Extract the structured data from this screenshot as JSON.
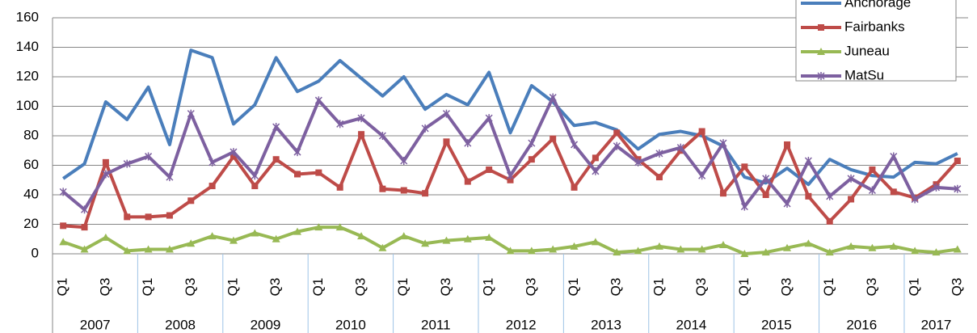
{
  "chart_data": {
    "type": "line",
    "categories": [
      "Q1",
      null,
      "Q3",
      null,
      "Q1",
      null,
      "Q3",
      null,
      "Q1",
      null,
      "Q3",
      null,
      "Q1",
      null,
      "Q3",
      null,
      "Q1",
      null,
      "Q3",
      null,
      "Q1",
      null,
      "Q3",
      null,
      "Q1",
      null,
      "Q3",
      null,
      "Q1",
      null,
      "Q3",
      null,
      "Q1",
      null,
      "Q3",
      null,
      "Q1",
      null,
      "Q3",
      null,
      "Q1",
      null,
      "Q3"
    ],
    "year_groups": [
      "2007",
      "2008",
      "2009",
      "2010",
      "2011",
      "2012",
      "2013",
      "2014",
      "2015",
      "2016",
      "2017"
    ],
    "series": [
      {
        "name": "Anchorage",
        "color": "#4a7ebb",
        "marker": "none",
        "values": [
          51,
          61,
          103,
          91,
          113,
          74,
          138,
          133,
          88,
          101,
          133,
          110,
          117,
          131,
          119,
          107,
          120,
          98,
          108,
          101,
          123,
          82,
          114,
          103,
          87,
          89,
          84,
          71,
          81,
          83,
          80,
          73,
          52,
          48,
          58,
          47,
          64,
          57,
          53,
          52,
          62,
          61,
          68
        ]
      },
      {
        "name": "Fairbanks",
        "color": "#be4b48",
        "marker": "square",
        "values": [
          19,
          18,
          62,
          25,
          25,
          26,
          36,
          46,
          66,
          46,
          64,
          54,
          55,
          45,
          81,
          44,
          43,
          41,
          76,
          49,
          57,
          50,
          64,
          78,
          45,
          65,
          82,
          64,
          52,
          70,
          83,
          41,
          59,
          40,
          74,
          39,
          22,
          37,
          57,
          42,
          38,
          47,
          63
        ]
      },
      {
        "name": "Juneau",
        "color": "#98b954",
        "marker": "triangle",
        "values": [
          8,
          3,
          11,
          2,
          3,
          3,
          7,
          12,
          9,
          14,
          10,
          15,
          18,
          18,
          12,
          4,
          12,
          7,
          9,
          10,
          11,
          2,
          2,
          3,
          5,
          8,
          1,
          2,
          5,
          3,
          3,
          6,
          0,
          1,
          4,
          7,
          1,
          5,
          4,
          5,
          2,
          1,
          3
        ]
      },
      {
        "name": "MatSu",
        "color": "#7d60a0",
        "marker": "star",
        "values": [
          42,
          30,
          54,
          61,
          66,
          52,
          95,
          62,
          69,
          53,
          86,
          69,
          104,
          88,
          92,
          80,
          63,
          85,
          95,
          75,
          92,
          53,
          75,
          106,
          74,
          56,
          73,
          62,
          68,
          72,
          53,
          75,
          32,
          51,
          34,
          63,
          39,
          51,
          43,
          66,
          37,
          45,
          44
        ]
      }
    ],
    "ylim": [
      0,
      160
    ],
    "yticks": [
      0,
      20,
      40,
      60,
      80,
      100,
      120,
      140,
      160
    ],
    "grid": true,
    "legend": "top-right"
  }
}
